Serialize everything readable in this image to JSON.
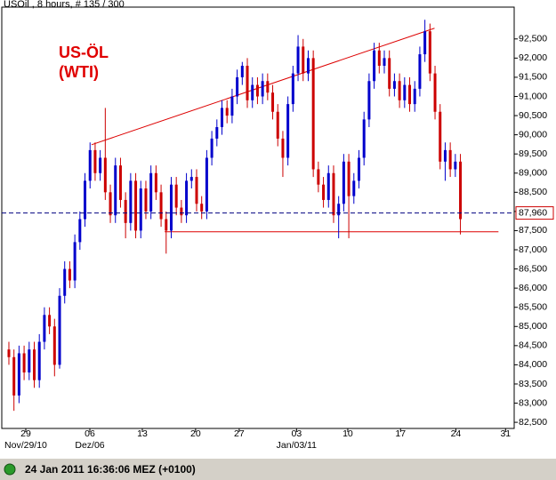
{
  "chart_data": {
    "type": "candlestick",
    "title": "USOil , 8 hours, # 135 / 300",
    "annotation": [
      "US-ÖL",
      "(WTI)"
    ],
    "status": "24 Jan 2011 16:36:06  MEZ (+0100)",
    "up_color": "#0000cc",
    "down_color": "#cc0000",
    "xlim": [
      -1.4,
      99.6
    ],
    "ylim": [
      82.34,
      93.33
    ],
    "grid": false,
    "xticks": [
      {
        "value": 3.33,
        "label": "29"
      },
      {
        "value": 15.96,
        "label": "06"
      },
      {
        "value": 26.3,
        "label": "13"
      },
      {
        "value": 36.8,
        "label": "20"
      },
      {
        "value": 45.4,
        "label": "27"
      },
      {
        "value": 56.7,
        "label": "03"
      },
      {
        "value": 66.8,
        "label": "10"
      },
      {
        "value": 77.2,
        "label": "17"
      },
      {
        "value": 88.1,
        "label": "24"
      },
      {
        "value": 97.9,
        "label": "31"
      }
    ],
    "xtick_sublabels": [
      {
        "value": 3.33,
        "label": "Nov/29/10"
      },
      {
        "value": 15.96,
        "label": "Dez/06"
      },
      {
        "value": 56.7,
        "label": "Jan/03/11"
      }
    ],
    "yticks": [
      {
        "value": 82.5,
        "label": "82,500"
      },
      {
        "value": 83,
        "label": "83,000"
      },
      {
        "value": 83.5,
        "label": "83,500"
      },
      {
        "value": 84,
        "label": "84,000"
      },
      {
        "value": 84.5,
        "label": "84,500"
      },
      {
        "value": 85,
        "label": "85,000"
      },
      {
        "value": 85.5,
        "label": "85,500"
      },
      {
        "value": 86,
        "label": "86,000"
      },
      {
        "value": 86.5,
        "label": "86,500"
      },
      {
        "value": 87,
        "label": "87,000"
      },
      {
        "value": 87.5,
        "label": "87,500"
      },
      {
        "value": 88,
        "label": "88,000"
      },
      {
        "value": 88.5,
        "label": "88,500"
      },
      {
        "value": 89,
        "label": "89,000"
      },
      {
        "value": 89.5,
        "label": "89,500"
      },
      {
        "value": 90,
        "label": "90,000"
      },
      {
        "value": 90.5,
        "label": "90,500"
      },
      {
        "value": 91,
        "label": "91,000"
      },
      {
        "value": 91.5,
        "label": "91,500"
      },
      {
        "value": 92,
        "label": "92,000"
      },
      {
        "value": 92.5,
        "label": "92,500"
      }
    ],
    "price_line": {
      "value": 87.96,
      "label": "87,960",
      "color": "#000080"
    },
    "trend_lines": [
      {
        "x": [
          16.3,
          83.9
        ],
        "y": [
          89.74,
          92.78
        ],
        "color": "#dd0000"
      },
      {
        "x": [
          30.7,
          96.5
        ],
        "y": [
          87.47,
          87.47
        ],
        "color": "#dd0000"
      }
    ],
    "candles": [
      [
        84.4,
        84.6,
        84.0,
        84.2
      ],
      [
        84.2,
        84.4,
        82.8,
        83.2
      ],
      [
        83.2,
        84.5,
        83.0,
        84.3
      ],
      [
        84.3,
        84.5,
        83.6,
        83.8
      ],
      [
        83.8,
        84.6,
        83.6,
        84.4
      ],
      [
        84.4,
        84.6,
        83.4,
        83.6
      ],
      [
        83.6,
        84.8,
        83.4,
        84.6
      ],
      [
        84.6,
        85.5,
        84.4,
        85.3
      ],
      [
        85.3,
        85.5,
        84.8,
        85.0
      ],
      [
        85.0,
        85.2,
        83.7,
        84.0
      ],
      [
        84.0,
        86.0,
        83.9,
        85.8
      ],
      [
        85.8,
        86.7,
        85.6,
        86.5
      ],
      [
        86.5,
        86.7,
        86.0,
        86.2
      ],
      [
        86.2,
        87.4,
        86.0,
        87.2
      ],
      [
        87.2,
        88.0,
        87.0,
        87.8
      ],
      [
        87.8,
        89.0,
        87.6,
        88.8
      ],
      [
        88.8,
        89.8,
        88.6,
        89.6
      ],
      [
        89.6,
        89.8,
        88.8,
        89.0
      ],
      [
        89.0,
        89.6,
        88.8,
        89.4
      ],
      [
        89.4,
        90.7,
        88.3,
        88.5
      ],
      [
        88.5,
        88.7,
        87.7,
        87.9
      ],
      [
        87.9,
        89.4,
        87.7,
        89.2
      ],
      [
        89.2,
        89.4,
        88.1,
        88.3
      ],
      [
        88.3,
        88.5,
        87.3,
        87.7
      ],
      [
        87.7,
        89.0,
        87.5,
        88.8
      ],
      [
        88.8,
        89.0,
        87.3,
        87.5
      ],
      [
        87.5,
        88.8,
        87.3,
        88.6
      ],
      [
        88.6,
        88.8,
        87.8,
        88.0
      ],
      [
        88.0,
        89.2,
        87.8,
        89.0
      ],
      [
        89.0,
        89.2,
        88.3,
        88.5
      ],
      [
        88.5,
        88.7,
        87.6,
        87.8
      ],
      [
        87.8,
        88.0,
        86.9,
        87.5
      ],
      [
        87.5,
        88.9,
        87.3,
        88.7
      ],
      [
        88.7,
        88.9,
        87.9,
        88.1
      ],
      [
        88.1,
        88.3,
        87.7,
        87.9
      ],
      [
        87.9,
        89.0,
        87.7,
        88.8
      ],
      [
        88.8,
        89.1,
        88.6,
        88.9
      ],
      [
        88.9,
        89.1,
        88.0,
        88.2
      ],
      [
        88.2,
        88.4,
        87.8,
        88.0
      ],
      [
        88.0,
        89.6,
        87.8,
        89.4
      ],
      [
        89.4,
        90.1,
        89.2,
        89.9
      ],
      [
        89.9,
        90.4,
        89.7,
        90.2
      ],
      [
        90.2,
        90.9,
        90.0,
        90.7
      ],
      [
        90.7,
        90.9,
        90.3,
        90.5
      ],
      [
        90.5,
        91.2,
        90.3,
        91.0
      ],
      [
        91.0,
        91.7,
        90.8,
        91.5
      ],
      [
        91.5,
        91.9,
        91.3,
        91.8
      ],
      [
        91.8,
        92.0,
        90.7,
        90.9
      ],
      [
        90.9,
        91.5,
        90.7,
        91.3
      ],
      [
        91.3,
        91.5,
        90.8,
        91.0
      ],
      [
        91.0,
        91.6,
        90.8,
        91.4
      ],
      [
        91.4,
        91.6,
        90.9,
        91.1
      ],
      [
        91.1,
        91.3,
        90.4,
        90.6
      ],
      [
        90.6,
        90.8,
        89.7,
        89.9
      ],
      [
        89.9,
        90.1,
        88.9,
        89.4
      ],
      [
        89.4,
        91.0,
        89.2,
        90.8
      ],
      [
        90.8,
        91.8,
        90.6,
        91.6
      ],
      [
        91.6,
        92.6,
        91.4,
        92.3
      ],
      [
        92.3,
        92.5,
        91.4,
        91.6
      ],
      [
        91.6,
        92.2,
        91.4,
        92.0
      ],
      [
        92.0,
        92.2,
        88.9,
        89.1
      ],
      [
        89.1,
        89.3,
        88.5,
        88.7
      ],
      [
        88.7,
        88.9,
        88.1,
        88.3
      ],
      [
        88.3,
        89.2,
        88.1,
        89.0
      ],
      [
        89.0,
        89.2,
        87.7,
        87.9
      ],
      [
        87.9,
        88.4,
        87.3,
        88.2
      ],
      [
        88.2,
        89.5,
        88.0,
        89.3
      ],
      [
        89.3,
        89.5,
        87.3,
        88.4
      ],
      [
        88.4,
        89.0,
        88.2,
        88.8
      ],
      [
        88.8,
        89.6,
        88.6,
        89.4
      ],
      [
        89.4,
        90.6,
        89.2,
        90.4
      ],
      [
        90.4,
        91.6,
        90.2,
        91.4
      ],
      [
        91.4,
        92.4,
        91.2,
        92.2
      ],
      [
        92.2,
        92.4,
        91.6,
        91.8
      ],
      [
        91.8,
        92.2,
        91.6,
        92.0
      ],
      [
        92.0,
        92.2,
        91.0,
        91.2
      ],
      [
        91.2,
        91.6,
        91.0,
        91.4
      ],
      [
        91.4,
        91.6,
        90.7,
        90.9
      ],
      [
        90.9,
        91.5,
        90.7,
        91.3
      ],
      [
        91.3,
        91.5,
        90.6,
        90.8
      ],
      [
        90.8,
        91.4,
        90.6,
        91.2
      ],
      [
        91.2,
        92.3,
        91.0,
        92.1
      ],
      [
        92.1,
        93.0,
        91.9,
        92.7
      ],
      [
        92.7,
        92.9,
        91.4,
        91.6
      ],
      [
        91.6,
        91.8,
        90.4,
        90.6
      ],
      [
        90.6,
        90.8,
        89.1,
        89.3
      ],
      [
        89.3,
        89.8,
        88.8,
        89.6
      ],
      [
        89.6,
        89.8,
        88.9,
        89.1
      ],
      [
        89.1,
        89.5,
        88.9,
        89.3
      ],
      [
        89.3,
        89.5,
        87.4,
        87.8
      ]
    ]
  }
}
